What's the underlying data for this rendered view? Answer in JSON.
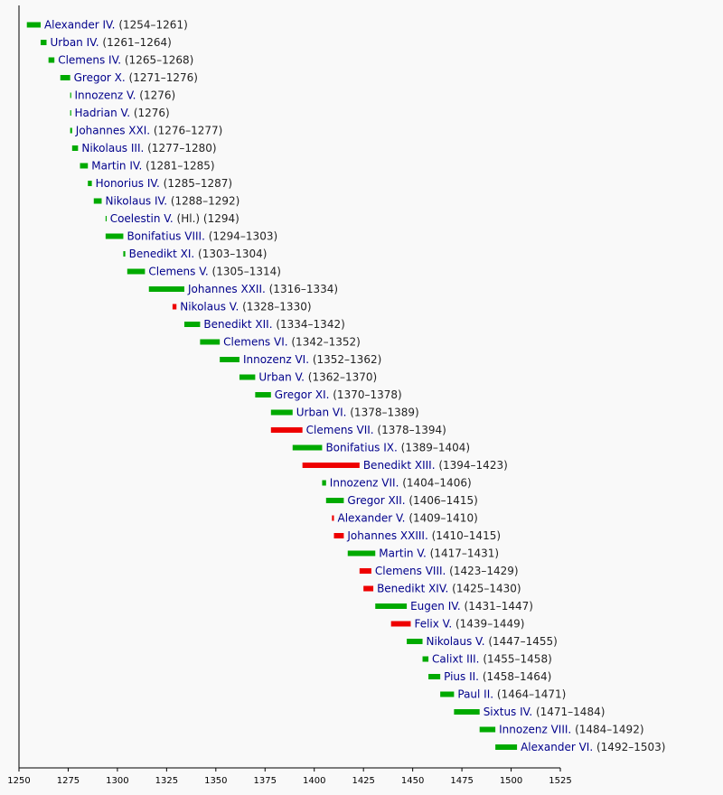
{
  "chart_data": {
    "type": "timeline",
    "title": "",
    "xlabel": "",
    "ylabel": "",
    "xlim": [
      1250,
      1525
    ],
    "x_ticks": [
      "1250",
      "1275",
      "1300",
      "1325",
      "1350",
      "1375",
      "1400",
      "1425",
      "1450",
      "1475",
      "1500",
      "1525"
    ],
    "grid": false,
    "colors": {
      "pope": "#00aa00",
      "antipope": "#ee0000"
    },
    "entries": [
      {
        "name": "Alexander IV.",
        "years": "(1254–1261)",
        "start": 1254,
        "end": 1261,
        "kind": "pope"
      },
      {
        "name": "Urban IV.",
        "years": "(1261–1264)",
        "start": 1261,
        "end": 1264,
        "kind": "pope"
      },
      {
        "name": "Clemens IV.",
        "years": "(1265–1268)",
        "start": 1265,
        "end": 1268,
        "kind": "pope"
      },
      {
        "name": "Gregor X.",
        "years": "(1271–1276)",
        "start": 1271,
        "end": 1276,
        "kind": "pope"
      },
      {
        "name": "Innozenz V.",
        "years": "(1276)",
        "start": 1276,
        "end": 1276.4,
        "kind": "pope"
      },
      {
        "name": "Hadrian V.",
        "years": "(1276)",
        "start": 1276,
        "end": 1276.4,
        "kind": "pope"
      },
      {
        "name": "Johannes XXI.",
        "years": "(1276–1277)",
        "start": 1276,
        "end": 1277,
        "kind": "pope"
      },
      {
        "name": "Nikolaus III.",
        "years": "(1277–1280)",
        "start": 1277,
        "end": 1280,
        "kind": "pope"
      },
      {
        "name": "Martin IV.",
        "years": "(1281–1285)",
        "start": 1281,
        "end": 1285,
        "kind": "pope"
      },
      {
        "name": "Honorius IV.",
        "years": "(1285–1287)",
        "start": 1285,
        "end": 1287,
        "kind": "pope"
      },
      {
        "name": "Nikolaus IV.",
        "years": "(1288–1292)",
        "start": 1288,
        "end": 1292,
        "kind": "pope"
      },
      {
        "name": "Coelestin V.",
        "years": "(Hl.) (1294)",
        "start": 1294,
        "end": 1294.4,
        "kind": "pope"
      },
      {
        "name": "Bonifatius VIII.",
        "years": "(1294–1303)",
        "start": 1294,
        "end": 1303,
        "kind": "pope"
      },
      {
        "name": "Benedikt XI.",
        "years": "(1303–1304)",
        "start": 1303,
        "end": 1304,
        "kind": "pope"
      },
      {
        "name": "Clemens V.",
        "years": "(1305–1314)",
        "start": 1305,
        "end": 1314,
        "kind": "pope"
      },
      {
        "name": "Johannes XXII.",
        "years": "(1316–1334)",
        "start": 1316,
        "end": 1334,
        "kind": "pope"
      },
      {
        "name": "Nikolaus V.",
        "years": "(1328–1330)",
        "start": 1328,
        "end": 1330,
        "kind": "antipope"
      },
      {
        "name": "Benedikt XII.",
        "years": "(1334–1342)",
        "start": 1334,
        "end": 1342,
        "kind": "pope"
      },
      {
        "name": "Clemens VI.",
        "years": "(1342–1352)",
        "start": 1342,
        "end": 1352,
        "kind": "pope"
      },
      {
        "name": "Innozenz VI.",
        "years": "(1352–1362)",
        "start": 1352,
        "end": 1362,
        "kind": "pope"
      },
      {
        "name": "Urban V.",
        "years": "(1362–1370)",
        "start": 1362,
        "end": 1370,
        "kind": "pope"
      },
      {
        "name": "Gregor XI.",
        "years": "(1370–1378)",
        "start": 1370,
        "end": 1378,
        "kind": "pope"
      },
      {
        "name": "Urban VI.",
        "years": "(1378–1389)",
        "start": 1378,
        "end": 1389,
        "kind": "pope"
      },
      {
        "name": "Clemens VII.",
        "years": "(1378–1394)",
        "start": 1378,
        "end": 1394,
        "kind": "antipope"
      },
      {
        "name": "Bonifatius IX.",
        "years": "(1389–1404)",
        "start": 1389,
        "end": 1404,
        "kind": "pope"
      },
      {
        "name": "Benedikt XIII.",
        "years": "(1394–1423)",
        "start": 1394,
        "end": 1423,
        "kind": "antipope"
      },
      {
        "name": "Innozenz VII.",
        "years": "(1404–1406)",
        "start": 1404,
        "end": 1406,
        "kind": "pope"
      },
      {
        "name": "Gregor XII.",
        "years": "(1406–1415)",
        "start": 1406,
        "end": 1415,
        "kind": "pope"
      },
      {
        "name": "Alexander V.",
        "years": "(1409–1410)",
        "start": 1409,
        "end": 1410,
        "kind": "antipope"
      },
      {
        "name": "Johannes XXIII.",
        "years": "(1410–1415)",
        "start": 1410,
        "end": 1415,
        "kind": "antipope"
      },
      {
        "name": "Martin V.",
        "years": "(1417–1431)",
        "start": 1417,
        "end": 1431,
        "kind": "pope"
      },
      {
        "name": "Clemens VIII.",
        "years": "(1423–1429)",
        "start": 1423,
        "end": 1429,
        "kind": "antipope"
      },
      {
        "name": "Benedikt XIV.",
        "years": "(1425–1430)",
        "start": 1425,
        "end": 1430,
        "kind": "antipope"
      },
      {
        "name": "Eugen IV.",
        "years": "(1431–1447)",
        "start": 1431,
        "end": 1447,
        "kind": "pope"
      },
      {
        "name": "Felix V.",
        "years": "(1439–1449)",
        "start": 1439,
        "end": 1449,
        "kind": "antipope"
      },
      {
        "name": "Nikolaus V.",
        "years": "(1447–1455)",
        "start": 1447,
        "end": 1455,
        "kind": "pope"
      },
      {
        "name": "Calixt III.",
        "years": "(1455–1458)",
        "start": 1455,
        "end": 1458,
        "kind": "pope"
      },
      {
        "name": "Pius II.",
        "years": "(1458–1464)",
        "start": 1458,
        "end": 1464,
        "kind": "pope"
      },
      {
        "name": "Paul II.",
        "years": "(1464–1471)",
        "start": 1464,
        "end": 1471,
        "kind": "pope"
      },
      {
        "name": "Sixtus IV.",
        "years": "(1471–1484)",
        "start": 1471,
        "end": 1484,
        "kind": "pope"
      },
      {
        "name": "Innozenz VIII.",
        "years": "(1484–1492)",
        "start": 1484,
        "end": 1492,
        "kind": "pope"
      },
      {
        "name": "Alexander VI.",
        "years": "(1492–1503)",
        "start": 1492,
        "end": 1503,
        "kind": "pope"
      }
    ]
  }
}
